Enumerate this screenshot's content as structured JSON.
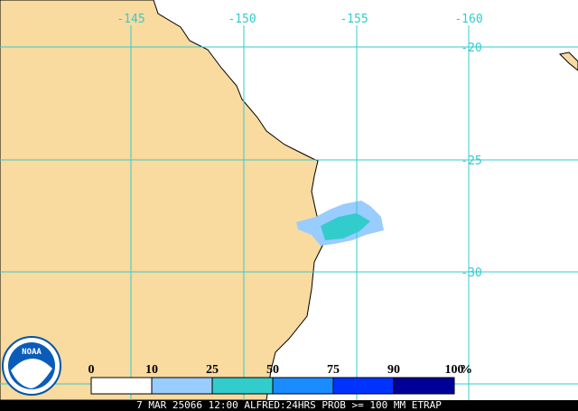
{
  "map": {
    "lon_labels": [
      "-145",
      "-150",
      "-155",
      "-160"
    ],
    "lat_labels": [
      "-20",
      "-25",
      "-30"
    ]
  },
  "legend": {
    "ticks": [
      0,
      10,
      25,
      50,
      75,
      90,
      100
    ],
    "unit": "%",
    "colors": [
      "#ffffff",
      "#99ccff",
      "#33cccc",
      "#1a8cff",
      "#0033ff",
      "#000099"
    ]
  },
  "footer": "7 MAR 25066 12:00 ALFRED:24HRS PROB >= 100 MM ETRAP",
  "logo": "NOAA"
}
